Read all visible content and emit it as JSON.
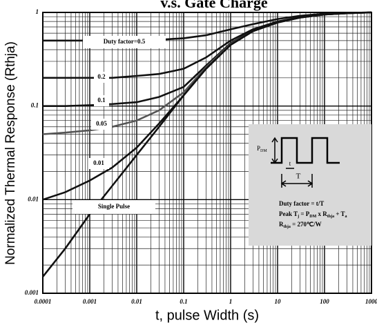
{
  "chart_data": {
    "type": "line",
    "title": "v.s. Gate Charge",
    "xlabel": "t, pulse Width (s)",
    "ylabel": "Normalized Thermal Response (Rthja)",
    "xscale": "log",
    "yscale": "log",
    "grid": true,
    "xlim": [
      0.0001,
      1000
    ],
    "ylim": [
      0.001,
      1
    ],
    "xticks": [
      0.0001,
      0.001,
      0.01,
      0.1,
      1,
      10,
      100,
      1000
    ],
    "yticks": [
      0.001,
      0.01,
      0.1,
      1
    ],
    "x": [
      0.0001,
      0.0003,
      0.001,
      0.003,
      0.01,
      0.03,
      0.1,
      0.3,
      1,
      3,
      10,
      30,
      100,
      300,
      1000
    ],
    "series": [
      {
        "name": "Duty factor=0.5",
        "color": "#111111",
        "values": [
          0.5,
          0.5,
          0.5,
          0.5,
          0.5,
          0.51,
          0.53,
          0.57,
          0.66,
          0.75,
          0.85,
          0.92,
          0.97,
          0.99,
          1
        ]
      },
      {
        "name": "0.2",
        "color": "#111111",
        "values": [
          0.2,
          0.2,
          0.2,
          0.2,
          0.21,
          0.22,
          0.25,
          0.33,
          0.5,
          0.66,
          0.8,
          0.89,
          0.96,
          0.99,
          1
        ]
      },
      {
        "name": "0.1",
        "color": "#111111",
        "values": [
          0.1,
          0.1,
          0.102,
          0.105,
          0.11,
          0.125,
          0.16,
          0.27,
          0.47,
          0.64,
          0.79,
          0.88,
          0.95,
          0.98,
          1
        ]
      },
      {
        "name": "0.05",
        "color": "#555555",
        "values": [
          0.05,
          0.052,
          0.055,
          0.06,
          0.07,
          0.09,
          0.14,
          0.26,
          0.46,
          0.63,
          0.78,
          0.88,
          0.95,
          0.98,
          1
        ]
      },
      {
        "name": "0.01",
        "color": "#111111",
        "values": [
          0.01,
          0.012,
          0.016,
          0.022,
          0.036,
          0.065,
          0.13,
          0.25,
          0.45,
          0.63,
          0.78,
          0.88,
          0.95,
          0.98,
          1
        ]
      },
      {
        "name": "Single Pulse",
        "color": "#111111",
        "values": [
          0.0015,
          0.003,
          0.007,
          0.014,
          0.03,
          0.06,
          0.13,
          0.25,
          0.45,
          0.63,
          0.78,
          0.88,
          0.95,
          0.98,
          1
        ]
      }
    ],
    "inset": {
      "pdm": [
        "P",
        "DM"
      ],
      "t": "t",
      "T": "T",
      "lines": [
        [
          "Duty factor = t/T"
        ],
        [
          "Peak T",
          "j",
          " = P",
          "DM",
          " x R",
          "thja",
          " + T",
          "a"
        ],
        [
          "R",
          "thja",
          " = 270℃/W"
        ]
      ]
    }
  }
}
